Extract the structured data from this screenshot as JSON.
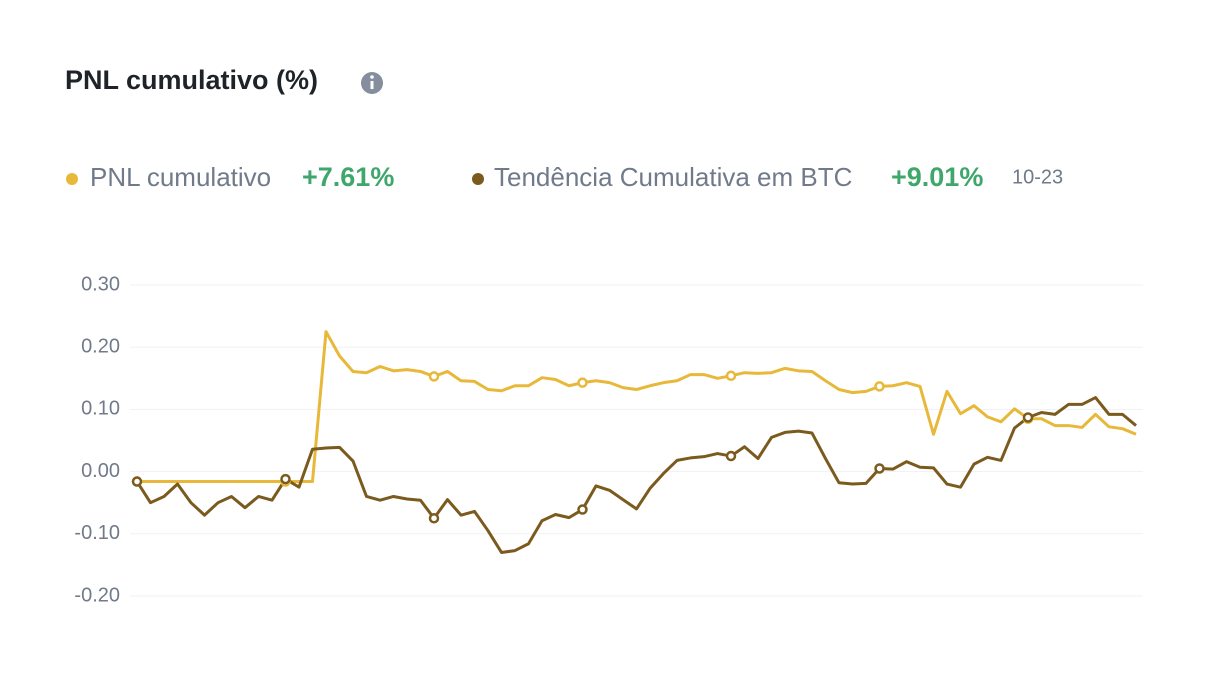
{
  "chart_data": {
    "type": "line",
    "title": "PNL cumulativo (%)",
    "date": "10-23",
    "categories": [
      null,
      null,
      null,
      null,
      null,
      null,
      null,
      null,
      null,
      null,
      null,
      null,
      null,
      null,
      null,
      null,
      null,
      null,
      null,
      null,
      null,
      null,
      null,
      null,
      null,
      null,
      null,
      null,
      null,
      null,
      null,
      null,
      null,
      null,
      null,
      null,
      null,
      null,
      null,
      null,
      null,
      null,
      null,
      null,
      null,
      null,
      null,
      null,
      null,
      null,
      null,
      null,
      null,
      null,
      null,
      null,
      null,
      null,
      null,
      null,
      null,
      null,
      null,
      null,
      null,
      null,
      null,
      null,
      null,
      null,
      null,
      null,
      null,
      null,
      null
    ],
    "series": [
      {
        "name": "PNL cumulativo",
        "change": "+7.61%",
        "color": "#e8b83a",
        "values": [
          -0.016,
          -0.016,
          -0.016,
          -0.016,
          -0.016,
          -0.016,
          -0.016,
          -0.016,
          -0.016,
          -0.016,
          -0.016,
          -0.016,
          -0.016,
          -0.016,
          0.225,
          0.186,
          0.161,
          0.159,
          0.169,
          0.162,
          0.164,
          0.161,
          0.153,
          0.161,
          0.146,
          0.145,
          0.132,
          0.13,
          0.138,
          0.138,
          0.151,
          0.148,
          0.138,
          0.143,
          0.146,
          0.143,
          0.135,
          0.132,
          0.138,
          0.143,
          0.146,
          0.156,
          0.156,
          0.15,
          0.154,
          0.159,
          0.158,
          0.159,
          0.166,
          0.162,
          0.161,
          0.146,
          0.132,
          0.127,
          0.129,
          0.137,
          0.138,
          0.143,
          0.137,
          0.06,
          0.129,
          0.093,
          0.106,
          0.088,
          0.08,
          0.101,
          0.085,
          0.085,
          0.074,
          0.074,
          0.071,
          0.092,
          0.072,
          0.069,
          0.06
        ]
      },
      {
        "name": "Tendência Cumulativa em BTC",
        "change": "+9.01%",
        "color": "#7b5a1e",
        "values": [
          -0.016,
          -0.05,
          -0.04,
          -0.02,
          -0.05,
          -0.07,
          -0.05,
          -0.04,
          -0.058,
          -0.04,
          -0.046,
          -0.012,
          -0.025,
          0.036,
          0.038,
          0.039,
          0.017,
          -0.04,
          -0.046,
          -0.04,
          -0.044,
          -0.046,
          -0.075,
          -0.045,
          -0.07,
          -0.064,
          -0.095,
          -0.13,
          -0.127,
          -0.116,
          -0.079,
          -0.069,
          -0.074,
          -0.061,
          -0.023,
          -0.03,
          -0.045,
          -0.06,
          -0.027,
          -0.003,
          0.018,
          0.022,
          0.024,
          0.029,
          0.025,
          0.04,
          0.021,
          0.055,
          0.063,
          0.065,
          0.062,
          0.021,
          -0.018,
          -0.02,
          -0.019,
          0.005,
          0.004,
          0.016,
          0.007,
          0.006,
          -0.02,
          -0.025,
          0.012,
          0.023,
          0.018,
          0.07,
          0.087,
          0.095,
          0.092,
          0.108,
          0.108,
          0.119,
          0.092,
          0.092,
          0.074
        ]
      }
    ],
    "marker_indices": [
      0,
      11,
      22,
      33,
      44,
      55,
      66
    ],
    "ylim": [
      -0.2,
      0.3
    ],
    "yticks": [
      {
        "value": 0.3,
        "label": "0.30"
      },
      {
        "value": 0.2,
        "label": "0.20"
      },
      {
        "value": 0.1,
        "label": "0.10"
      },
      {
        "value": 0,
        "label": "0.00"
      },
      {
        "value": -0.1,
        "label": "-0.10"
      },
      {
        "value": -0.2,
        "label": "-0.20"
      }
    ],
    "grid": true
  }
}
